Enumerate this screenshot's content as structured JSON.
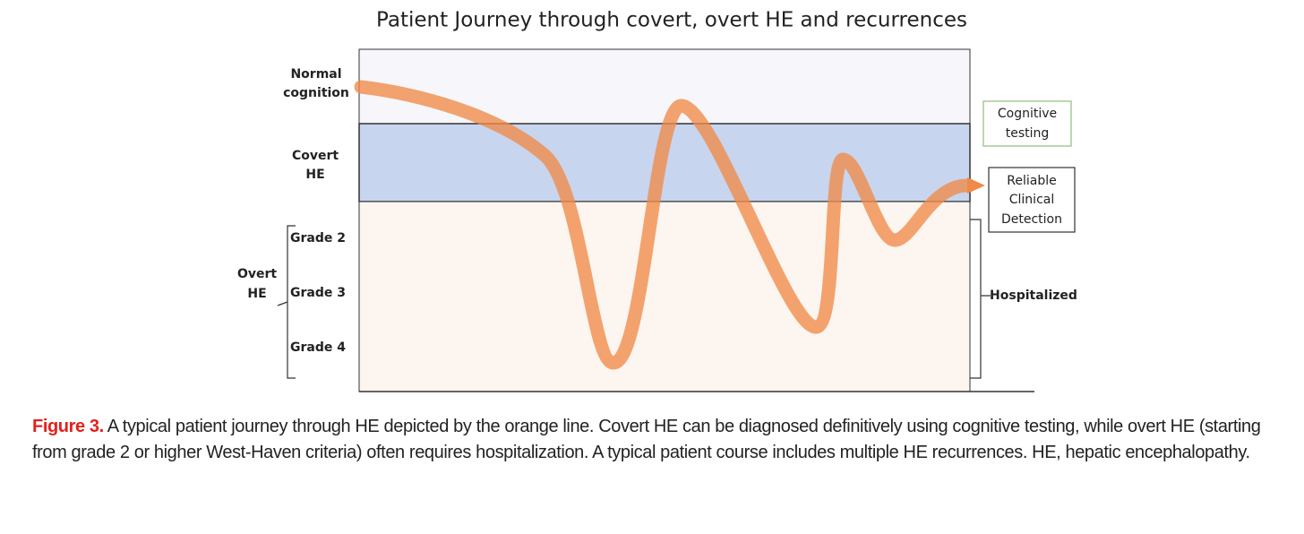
{
  "title": "Patient Journey through covert, overt HE and recurrences",
  "zones": {
    "normal": [
      "Normal",
      "cognition"
    ],
    "covert": [
      "Covert",
      "HE"
    ],
    "overt": [
      "Overt",
      "HE"
    ]
  },
  "grades": [
    "Grade 2",
    "Grade 3",
    "Grade 4"
  ],
  "boxes": {
    "cognitive_testing": [
      "Cognitive",
      "testing"
    ],
    "clinical_detection": [
      "Reliable",
      "Clinical",
      "Detection"
    ]
  },
  "hospitalized": "Hospitalized",
  "caption": {
    "label": "Figure 3.",
    "text": " A typical patient journey through HE depicted by the orange line. Covert HE can be diagnosed definitively using cognitive testing, while overt HE (starting from grade 2 or higher West-Haven criteria) often requires hospitalization. A typical patient course includes multiple HE recurrences. HE, hepatic encephalopathy."
  }
}
